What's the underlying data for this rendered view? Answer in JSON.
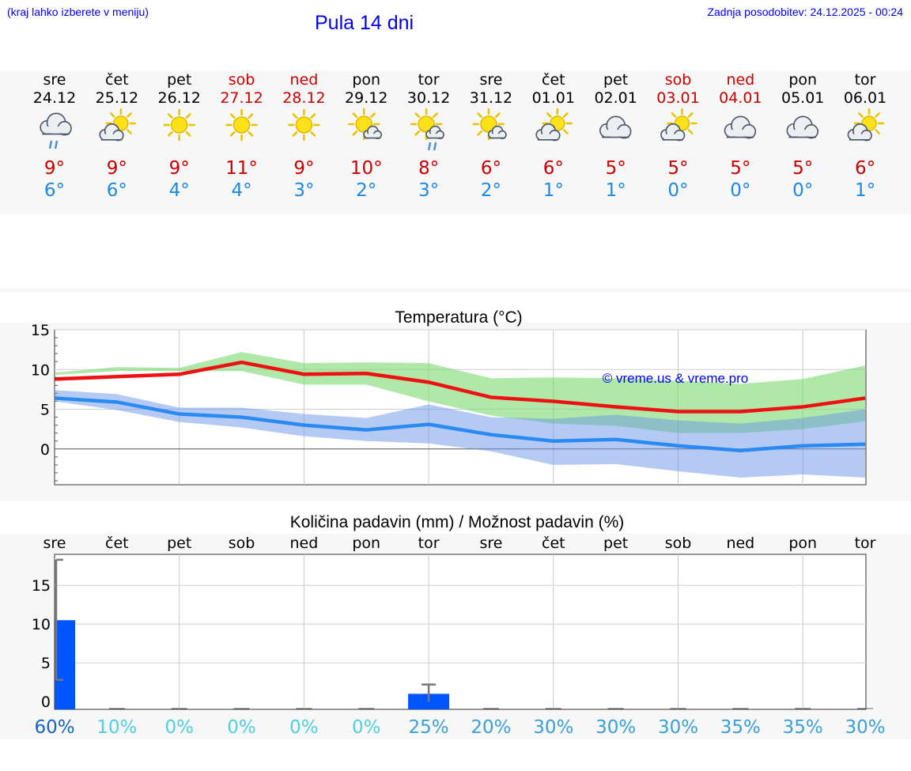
{
  "header": {
    "left_note": "(kraj lahko izberete v meniju)",
    "title": "Pula 14 dni",
    "updated": "Zadnja posodobitev: 24.12.2025 - 00:24"
  },
  "colors": {
    "weekend": "#cc0000",
    "weekday": "#000000",
    "max_temp": "#cc0000",
    "min_temp": "#1e88e5",
    "max_line": "#ee1111",
    "max_band": "#a8e6a3",
    "min_line": "#2a8af0",
    "min_band": "#a8c0f0",
    "precip_bar": "#0055ff",
    "watermark": "#0000ee"
  },
  "days": [
    {
      "dow": "sre",
      "date": "24.12",
      "weekend": false,
      "icon": "cloud-rain-icon",
      "tmax": "9°",
      "tmin": "6°",
      "chance": "60%",
      "chance_color": "#1565c0"
    },
    {
      "dow": "čet",
      "date": "25.12",
      "weekend": false,
      "icon": "cloud-sun-icon",
      "tmax": "9°",
      "tmin": "6°",
      "chance": "10%",
      "chance_color": "#4dd0e1"
    },
    {
      "dow": "pet",
      "date": "26.12",
      "weekend": false,
      "icon": "sun-icon",
      "tmax": "9°",
      "tmin": "4°",
      "chance": "0%",
      "chance_color": "#4dd0e1"
    },
    {
      "dow": "sob",
      "date": "27.12",
      "weekend": true,
      "icon": "sun-icon",
      "tmax": "11°",
      "tmin": "4°",
      "chance": "0%",
      "chance_color": "#4dd0e1"
    },
    {
      "dow": "ned",
      "date": "28.12",
      "weekend": true,
      "icon": "sun-icon",
      "tmax": "9°",
      "tmin": "3°",
      "chance": "0%",
      "chance_color": "#4dd0e1"
    },
    {
      "dow": "pon",
      "date": "29.12",
      "weekend": false,
      "icon": "sun-cloud-icon",
      "tmax": "10°",
      "tmin": "2°",
      "chance": "0%",
      "chance_color": "#4dd0e1"
    },
    {
      "dow": "tor",
      "date": "30.12",
      "weekend": false,
      "icon": "sun-cloud-rain-icon",
      "tmax": "8°",
      "tmin": "3°",
      "chance": "25%",
      "chance_color": "#3aa0d8"
    },
    {
      "dow": "sre",
      "date": "31.12",
      "weekend": false,
      "icon": "sun-cloud-icon",
      "tmax": "6°",
      "tmin": "2°",
      "chance": "20%",
      "chance_color": "#3aa0d8"
    },
    {
      "dow": "čet",
      "date": "01.01",
      "weekend": false,
      "icon": "cloud-sun-icon",
      "tmax": "6°",
      "tmin": "1°",
      "chance": "30%",
      "chance_color": "#3aa0d8"
    },
    {
      "dow": "pet",
      "date": "02.01",
      "weekend": false,
      "icon": "cloud-icon",
      "tmax": "5°",
      "tmin": "1°",
      "chance": "30%",
      "chance_color": "#3aa0d8"
    },
    {
      "dow": "sob",
      "date": "03.01",
      "weekend": true,
      "icon": "cloud-sun-icon",
      "tmax": "5°",
      "tmin": "0°",
      "chance": "30%",
      "chance_color": "#3aa0d8"
    },
    {
      "dow": "ned",
      "date": "04.01",
      "weekend": true,
      "icon": "cloud-icon",
      "tmax": "5°",
      "tmin": "0°",
      "chance": "35%",
      "chance_color": "#3aa0d8"
    },
    {
      "dow": "pon",
      "date": "05.01",
      "weekend": false,
      "icon": "cloud-icon",
      "tmax": "5°",
      "tmin": "0°",
      "chance": "35%",
      "chance_color": "#3aa0d8"
    },
    {
      "dow": "tor",
      "date": "06.01",
      "weekend": false,
      "icon": "cloud-sun-icon",
      "tmax": "6°",
      "tmin": "1°",
      "chance": "30%",
      "chance_color": "#3aa0d8"
    }
  ],
  "chart_data": [
    {
      "type": "line",
      "title": "Temperatura (°C)",
      "xlabel": "",
      "ylabel": "",
      "ylim": [
        -4.5,
        15
      ],
      "yticks": [
        0,
        5,
        10,
        15
      ],
      "watermark": "© vreme.us & vreme.pro",
      "x": [
        0,
        1,
        2,
        3,
        4,
        5,
        6,
        7,
        8,
        9,
        10,
        11,
        12,
        13
      ],
      "series": [
        {
          "name": "max",
          "values": [
            8.8,
            9.1,
            9.4,
            10.9,
            9.4,
            9.5,
            8.4,
            6.5,
            6.0,
            5.3,
            4.7,
            4.7,
            5.3,
            6.4
          ],
          "band_low": [
            9.3,
            9.8,
            9.8,
            9.8,
            8.1,
            8.1,
            6.0,
            4.2,
            3.2,
            2.9,
            2.0,
            2.0,
            2.5,
            3.5
          ],
          "band_high": [
            9.6,
            10.3,
            10.2,
            12.2,
            10.8,
            10.9,
            10.8,
            8.9,
            9.0,
            8.9,
            8.6,
            8.2,
            8.8,
            10.5
          ]
        },
        {
          "name": "min",
          "values": [
            6.4,
            5.9,
            4.4,
            4.0,
            3.0,
            2.4,
            3.1,
            1.8,
            1.0,
            1.2,
            0.4,
            -0.2,
            0.4,
            0.6
          ],
          "band_low": [
            6.0,
            4.9,
            3.4,
            2.7,
            1.6,
            1.0,
            0.7,
            -0.3,
            -2.0,
            -1.9,
            -2.8,
            -3.6,
            -3.2,
            -3.6
          ],
          "band_high": [
            7.4,
            6.9,
            5.2,
            5.2,
            4.4,
            3.9,
            5.6,
            4.0,
            3.8,
            4.3,
            3.6,
            3.2,
            3.9,
            5.0
          ]
        }
      ]
    },
    {
      "type": "bar",
      "title": "Količina padavin (mm) / Možnost padavin (%)",
      "categories": [
        "sre",
        "čet",
        "pet",
        "sob",
        "ned",
        "pon",
        "tor",
        "sre",
        "čet",
        "pet",
        "sob",
        "ned",
        "pon",
        "tor"
      ],
      "ylim": [
        -1,
        19
      ],
      "yticks": [
        0,
        5,
        10,
        15
      ],
      "values": [
        10.5,
        0,
        0,
        0,
        0,
        0,
        1.0,
        0,
        0,
        0,
        0,
        0,
        0,
        0
      ],
      "error_low": [
        2.8,
        null,
        null,
        null,
        null,
        null,
        0,
        null,
        null,
        null,
        null,
        null,
        null,
        null
      ],
      "error_high": [
        18.3,
        null,
        null,
        null,
        null,
        null,
        2.2,
        null,
        null,
        null,
        null,
        null,
        null,
        null
      ],
      "chance_percent": [
        60,
        10,
        0,
        0,
        0,
        0,
        25,
        20,
        30,
        30,
        30,
        35,
        35,
        30
      ]
    }
  ]
}
